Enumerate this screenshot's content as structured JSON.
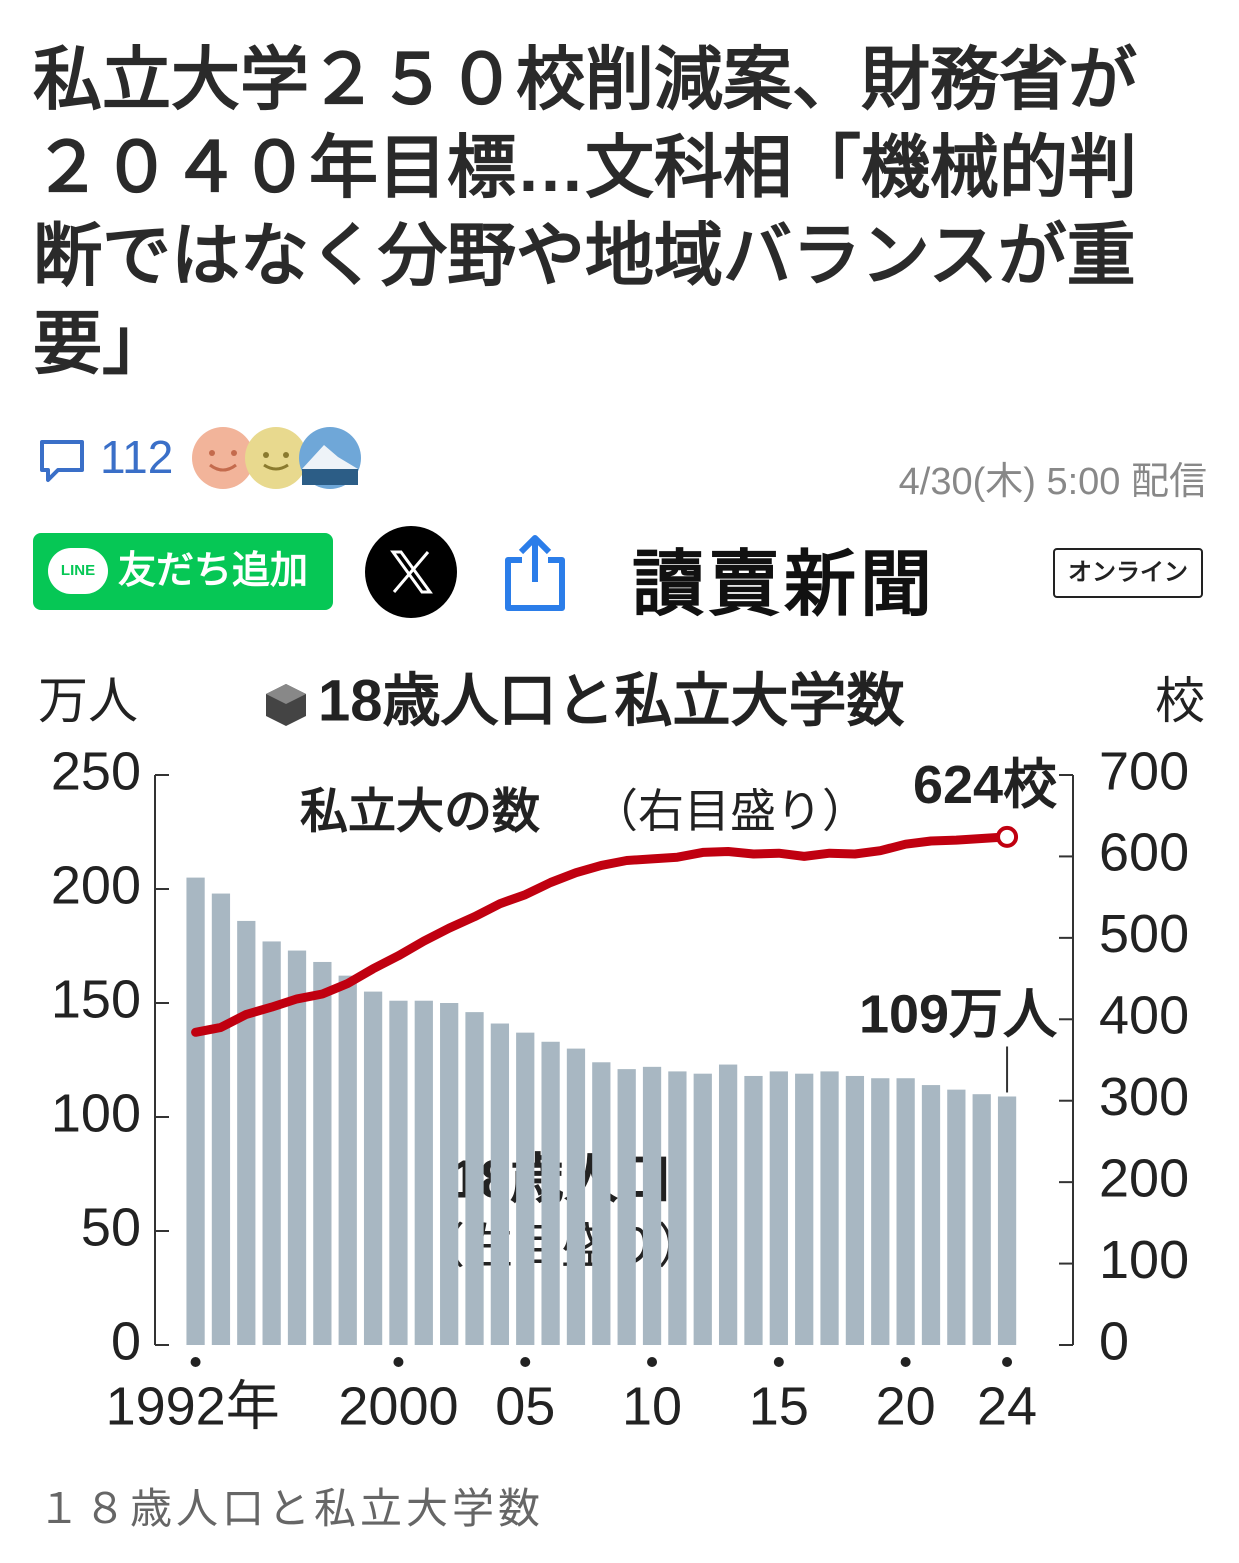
{
  "header": {
    "title": "私立大学２５０校削減案、財務省が２０４０年目標…文科相「機械的判断ではなく分野や地域バランスが重要」",
    "comment_count": "112",
    "date": "4/30(木) 5:00 配信"
  },
  "share": {
    "line_logo": "LINE",
    "line_button": "友だち追加",
    "publisher": "讀賣新聞",
    "publisher_badge": "オンライン"
  },
  "chart_data": {
    "type": "bar",
    "title": "18歳人口と私立大学数",
    "y_label": "万人",
    "y2_label": "校",
    "x": [
      1992,
      1993,
      1994,
      1995,
      1996,
      1997,
      1998,
      1999,
      2000,
      2001,
      2002,
      2003,
      2004,
      2005,
      2006,
      2007,
      2008,
      2009,
      2010,
      2011,
      2012,
      2013,
      2014,
      2015,
      2016,
      2017,
      2018,
      2019,
      2020,
      2021,
      2022,
      2023,
      2024
    ],
    "xlim": [
      1990.4,
      2026.6
    ],
    "xticks": [
      {
        "value": 1992,
        "label": "1992年"
      },
      {
        "value": 2000,
        "label": "2000"
      },
      {
        "value": 2005,
        "label": "05"
      },
      {
        "value": 2010,
        "label": "10"
      },
      {
        "value": 2015,
        "label": "15"
      },
      {
        "value": 2020,
        "label": "20"
      },
      {
        "value": 2024,
        "label": "24"
      }
    ],
    "ylim": [
      0,
      250
    ],
    "yticks": [
      0,
      50,
      100,
      150,
      200,
      250
    ],
    "y2lim": [
      0,
      700
    ],
    "y2ticks": [
      0,
      100,
      200,
      300,
      400,
      500,
      600,
      700
    ],
    "series": [
      {
        "name": "私立大の数",
        "note": "（右目盛り）",
        "type": "line",
        "axis": "y2",
        "color": "#c00010",
        "values": [
          384,
          390,
          406,
          415,
          425,
          431,
          444,
          462,
          478,
          496,
          512,
          526,
          542,
          553,
          568,
          580,
          589,
          595,
          597,
          599,
          605,
          606,
          603,
          604,
          600,
          604,
          603,
          607,
          615,
          619,
          620,
          622,
          624
        ],
        "value_labels": [
          null,
          null,
          null,
          null,
          null,
          null,
          null,
          null,
          null,
          null,
          null,
          null,
          null,
          null,
          null,
          null,
          null,
          null,
          null,
          null,
          null,
          null,
          null,
          null,
          null,
          null,
          null,
          null,
          null,
          null,
          null,
          null,
          "624校"
        ]
      },
      {
        "name": "18歳人口",
        "note": "（左目盛り）",
        "type": "bar",
        "color": "#a8b7c2",
        "values": [
          205,
          198,
          186,
          177,
          173,
          168,
          162,
          155,
          151,
          151,
          150,
          146,
          141,
          137,
          133,
          130,
          124,
          121,
          122,
          120,
          119,
          123,
          118,
          120,
          119,
          120,
          118,
          117,
          117,
          114,
          112,
          110,
          109
        ],
        "value_labels": [
          null,
          null,
          null,
          null,
          null,
          null,
          null,
          null,
          null,
          null,
          null,
          null,
          null,
          null,
          null,
          null,
          null,
          null,
          null,
          null,
          null,
          null,
          null,
          null,
          null,
          null,
          null,
          null,
          null,
          null,
          null,
          null,
          "109万人"
        ]
      }
    ]
  },
  "caption": "１８歳人口と私立大学数"
}
